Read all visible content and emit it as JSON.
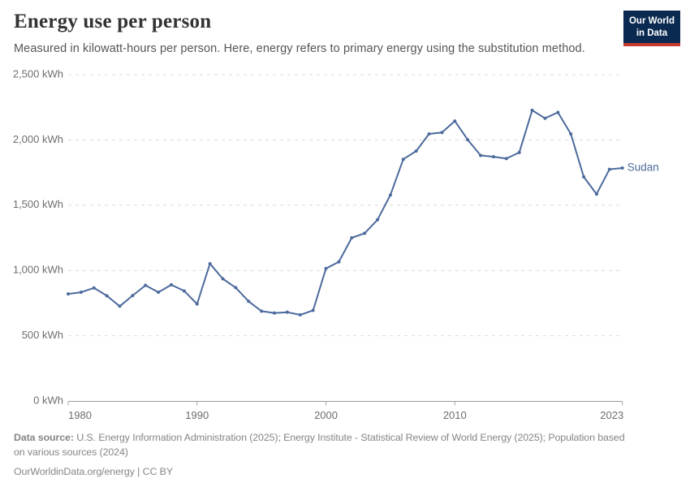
{
  "header": {
    "title": "Energy use per person",
    "subtitle": "Measured in kilowatt-hours per person. Here, energy refers to primary energy using the substitution method.",
    "logo": {
      "line1": "Our World",
      "line2": "in Data"
    }
  },
  "chart_data": {
    "type": "line",
    "title": "Energy use per person",
    "unit": "kWh",
    "x": [
      1980,
      1981,
      1982,
      1983,
      1984,
      1985,
      1986,
      1987,
      1988,
      1989,
      1990,
      1991,
      1992,
      1993,
      1994,
      1995,
      1996,
      1997,
      1998,
      1999,
      2000,
      2001,
      2002,
      2003,
      2004,
      2005,
      2006,
      2007,
      2008,
      2009,
      2010,
      2011,
      2012,
      2013,
      2014,
      2015,
      2016,
      2017,
      2018,
      2019,
      2020,
      2021,
      2022,
      2023
    ],
    "series": [
      {
        "name": "Sudan",
        "color": "#4c6a9c",
        "values": [
          820,
          833,
          866,
          806,
          726,
          808,
          886,
          833,
          890,
          843,
          743,
          1052,
          936,
          868,
          763,
          688,
          674,
          680,
          660,
          694,
          1015,
          1066,
          1250,
          1285,
          1388,
          1578,
          1852,
          1915,
          2046,
          2057,
          2145,
          2001,
          1881,
          1871,
          1857,
          1904,
          2227,
          2166,
          2211,
          2046,
          1717,
          1585,
          1775,
          1785
        ]
      }
    ],
    "ylim": [
      0,
      2500
    ],
    "ytick_values": [
      0,
      500,
      1000,
      1500,
      2000,
      2500
    ],
    "ytick_labels": [
      "0 kWh",
      "500 kWh",
      "1,000 kWh",
      "1,500 kWh",
      "2,000 kWh",
      "2,500 kWh"
    ],
    "xtick_values": [
      1980,
      1990,
      2000,
      2010,
      2023
    ],
    "xtick_labels": [
      "1980",
      "1990",
      "2000",
      "2010",
      "2023"
    ],
    "grid": "horizontal-dashed",
    "legend": "series label at line end"
  },
  "footer": {
    "source_label": "Data source:",
    "source_text_line1": "U.S. Energy Information Administration (2025); Energy Institute - Statistical Review of World Energy (2025); Population based",
    "source_text_line2": "on various sources (2024)",
    "url": "OurWorldinData.org/energy",
    "separator": " | ",
    "license": "CC BY"
  },
  "colors": {
    "line": "#4c6a9c",
    "grid": "#dcdcdc",
    "axis": "#9a9a9a",
    "tick_mark": "#aaaaaa",
    "tick_text": "#6e6e6e",
    "title_text": "#333333",
    "subtitle_text": "#555555",
    "footer_text": "#858585",
    "logo_bg": "#0b2a52",
    "logo_stripe": "#c5392f"
  }
}
